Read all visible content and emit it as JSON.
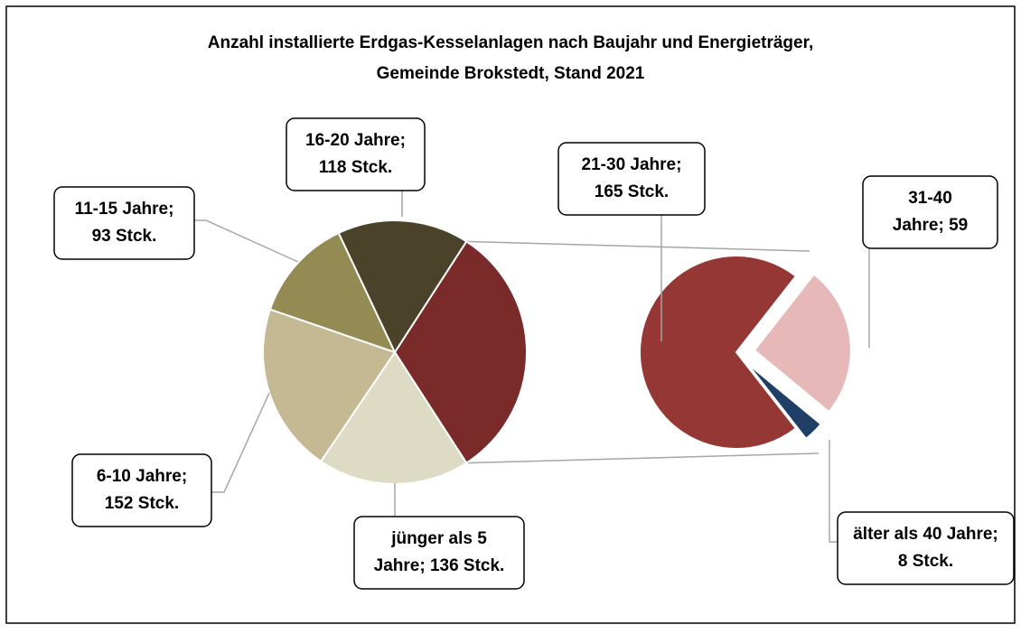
{
  "chart_data": {
    "type": "pie-of-pie",
    "title": [
      "Anzahl installierte Erdgas-Kesselanlagen nach Baujahr und Energieträger,",
      "Gemeinde Brokstedt, Stand 2021"
    ],
    "main": {
      "values": [
        136,
        152,
        93,
        118
      ],
      "value_labels": [
        [
          "jünger als 5",
          "Jahre; 136 Stck."
        ],
        [
          "6-10 Jahre;",
          "152 Stck."
        ],
        [
          "11-15 Jahre;",
          "93 Stck."
        ],
        [
          "16-20 Jahre;",
          "118 Stck."
        ]
      ],
      "colors": [
        "#dedbc4",
        "#c4b993",
        "#948a54",
        "#4a4229"
      ],
      "other_color": "#7b2a2a"
    },
    "secondary": {
      "values": [
        165,
        59,
        8
      ],
      "value_labels": [
        [
          "21-30 Jahre;",
          "165 Stck."
        ],
        [
          "31-40",
          "Jahre; 59"
        ],
        [
          "älter als 40 Jahre;",
          "8 Stck."
        ]
      ],
      "colors": [
        "#953735",
        "#e6b9b8",
        "#1f3f66"
      ]
    }
  }
}
